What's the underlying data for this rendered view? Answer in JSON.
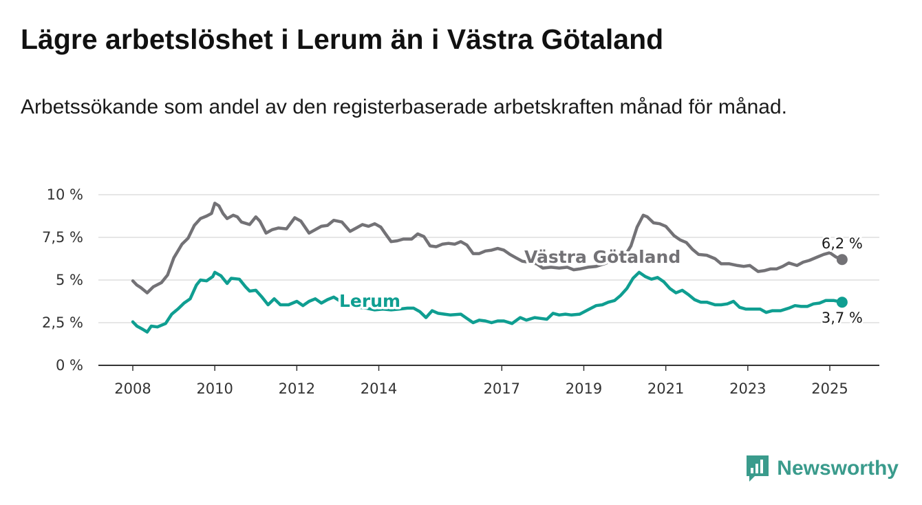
{
  "title": "Lägre arbetslöshet i Lerum än i Västra Götaland",
  "subtitle": "Arbetssökande som andel av den registerbaserade arbetskraften månad för månad.",
  "brand": {
    "name": "Newsworthy",
    "color": "#3a9b8c"
  },
  "chart_data": {
    "type": "line",
    "xlim": [
      2008,
      2025.5
    ],
    "ylim": [
      0,
      10
    ],
    "y_ticks": [
      0,
      2.5,
      5,
      7.5,
      10
    ],
    "y_tick_labels": [
      "0 %",
      "2,5 %",
      "5 %",
      "7,5 %",
      "10 %"
    ],
    "x_ticks": [
      2008,
      2010,
      2012,
      2014,
      2017,
      2019,
      2021,
      2023,
      2025
    ],
    "x_tick_labels": [
      "2008",
      "2010",
      "2012",
      "2014",
      "2017",
      "2019",
      "2021",
      "2023",
      "2025"
    ],
    "grid": true,
    "series": [
      {
        "name": "Västra Götaland",
        "color": "#737276",
        "end_label": "6,2 %",
        "points": [
          [
            2008.0,
            4.95
          ],
          [
            2008.1,
            4.7
          ],
          [
            2008.2,
            4.55
          ],
          [
            2008.35,
            4.25
          ],
          [
            2008.5,
            4.6
          ],
          [
            2008.7,
            4.85
          ],
          [
            2008.85,
            5.3
          ],
          [
            2009.0,
            6.3
          ],
          [
            2009.2,
            7.1
          ],
          [
            2009.35,
            7.45
          ],
          [
            2009.5,
            8.2
          ],
          [
            2009.65,
            8.6
          ],
          [
            2009.8,
            8.75
          ],
          [
            2009.92,
            8.9
          ],
          [
            2010.0,
            9.5
          ],
          [
            2010.1,
            9.35
          ],
          [
            2010.2,
            8.9
          ],
          [
            2010.3,
            8.6
          ],
          [
            2010.45,
            8.8
          ],
          [
            2010.55,
            8.7
          ],
          [
            2010.65,
            8.4
          ],
          [
            2010.85,
            8.25
          ],
          [
            2011.0,
            8.7
          ],
          [
            2011.1,
            8.45
          ],
          [
            2011.25,
            7.75
          ],
          [
            2011.4,
            7.95
          ],
          [
            2011.55,
            8.05
          ],
          [
            2011.75,
            8.0
          ],
          [
            2011.95,
            8.65
          ],
          [
            2012.1,
            8.45
          ],
          [
            2012.3,
            7.75
          ],
          [
            2012.45,
            7.95
          ],
          [
            2012.6,
            8.15
          ],
          [
            2012.75,
            8.2
          ],
          [
            2012.9,
            8.5
          ],
          [
            2013.1,
            8.4
          ],
          [
            2013.3,
            7.85
          ],
          [
            2013.45,
            8.05
          ],
          [
            2013.6,
            8.25
          ],
          [
            2013.75,
            8.15
          ],
          [
            2013.9,
            8.3
          ],
          [
            2014.05,
            8.1
          ],
          [
            2014.15,
            7.75
          ],
          [
            2014.3,
            7.25
          ],
          [
            2014.45,
            7.3
          ],
          [
            2014.6,
            7.4
          ],
          [
            2014.8,
            7.4
          ],
          [
            2014.95,
            7.7
          ],
          [
            2015.1,
            7.55
          ],
          [
            2015.25,
            7.0
          ],
          [
            2015.4,
            6.95
          ],
          [
            2015.55,
            7.1
          ],
          [
            2015.7,
            7.15
          ],
          [
            2015.85,
            7.1
          ],
          [
            2016.0,
            7.25
          ],
          [
            2016.15,
            7.05
          ],
          [
            2016.3,
            6.55
          ],
          [
            2016.45,
            6.55
          ],
          [
            2016.6,
            6.7
          ],
          [
            2016.75,
            6.75
          ],
          [
            2016.9,
            6.85
          ],
          [
            2017.05,
            6.75
          ],
          [
            2017.2,
            6.5
          ],
          [
            2017.35,
            6.3
          ],
          [
            2017.5,
            6.1
          ],
          [
            2017.65,
            6.05
          ],
          [
            2017.85,
            5.95
          ],
          [
            2018.0,
            5.7
          ],
          [
            2018.2,
            5.75
          ],
          [
            2018.4,
            5.7
          ],
          [
            2018.6,
            5.75
          ],
          [
            2018.75,
            5.6
          ],
          [
            2018.9,
            5.65
          ],
          [
            2019.1,
            5.75
          ],
          [
            2019.3,
            5.8
          ],
          [
            2019.5,
            5.95
          ],
          [
            2019.7,
            6.15
          ],
          [
            2019.9,
            6.4
          ],
          [
            2020.05,
            6.6
          ],
          [
            2020.15,
            7.0
          ],
          [
            2020.3,
            8.1
          ],
          [
            2020.45,
            8.8
          ],
          [
            2020.55,
            8.7
          ],
          [
            2020.7,
            8.35
          ],
          [
            2020.85,
            8.3
          ],
          [
            2021.0,
            8.15
          ],
          [
            2021.2,
            7.6
          ],
          [
            2021.35,
            7.35
          ],
          [
            2021.5,
            7.2
          ],
          [
            2021.65,
            6.8
          ],
          [
            2021.8,
            6.5
          ],
          [
            2022.0,
            6.45
          ],
          [
            2022.2,
            6.25
          ],
          [
            2022.35,
            5.95
          ],
          [
            2022.55,
            5.95
          ],
          [
            2022.75,
            5.85
          ],
          [
            2022.9,
            5.8
          ],
          [
            2023.05,
            5.85
          ],
          [
            2023.25,
            5.5
          ],
          [
            2023.4,
            5.55
          ],
          [
            2023.55,
            5.65
          ],
          [
            2023.7,
            5.65
          ],
          [
            2023.85,
            5.8
          ],
          [
            2024.0,
            6.0
          ],
          [
            2024.2,
            5.85
          ],
          [
            2024.35,
            6.05
          ],
          [
            2024.5,
            6.15
          ],
          [
            2024.7,
            6.35
          ],
          [
            2024.85,
            6.5
          ],
          [
            2025.0,
            6.6
          ],
          [
            2025.15,
            6.35
          ],
          [
            2025.3,
            6.2
          ]
        ]
      },
      {
        "name": "Lerum",
        "color": "#0f9e91",
        "end_label": "3,7 %",
        "points": [
          [
            2008.0,
            2.55
          ],
          [
            2008.1,
            2.3
          ],
          [
            2008.25,
            2.1
          ],
          [
            2008.35,
            1.95
          ],
          [
            2008.45,
            2.3
          ],
          [
            2008.6,
            2.25
          ],
          [
            2008.8,
            2.45
          ],
          [
            2008.95,
            3.0
          ],
          [
            2009.1,
            3.3
          ],
          [
            2009.25,
            3.65
          ],
          [
            2009.4,
            3.9
          ],
          [
            2009.55,
            4.7
          ],
          [
            2009.65,
            5.0
          ],
          [
            2009.8,
            4.95
          ],
          [
            2009.95,
            5.2
          ],
          [
            2010.0,
            5.45
          ],
          [
            2010.15,
            5.25
          ],
          [
            2010.3,
            4.8
          ],
          [
            2010.4,
            5.1
          ],
          [
            2010.6,
            5.05
          ],
          [
            2010.75,
            4.6
          ],
          [
            2010.85,
            4.35
          ],
          [
            2011.0,
            4.4
          ],
          [
            2011.15,
            4.0
          ],
          [
            2011.3,
            3.55
          ],
          [
            2011.45,
            3.9
          ],
          [
            2011.6,
            3.55
          ],
          [
            2011.8,
            3.55
          ],
          [
            2012.0,
            3.75
          ],
          [
            2012.15,
            3.5
          ],
          [
            2012.3,
            3.75
          ],
          [
            2012.45,
            3.9
          ],
          [
            2012.6,
            3.65
          ],
          [
            2012.75,
            3.85
          ],
          [
            2012.9,
            4.0
          ],
          [
            2013.1,
            3.7
          ],
          [
            2013.3,
            3.45
          ],
          [
            2013.5,
            3.4
          ],
          [
            2013.7,
            3.35
          ],
          [
            2013.9,
            3.25
          ],
          [
            2014.1,
            3.3
          ],
          [
            2014.3,
            3.25
          ],
          [
            2014.5,
            3.3
          ],
          [
            2014.7,
            3.35
          ],
          [
            2014.85,
            3.35
          ],
          [
            2015.0,
            3.15
          ],
          [
            2015.15,
            2.8
          ],
          [
            2015.3,
            3.2
          ],
          [
            2015.45,
            3.05
          ],
          [
            2015.6,
            3.0
          ],
          [
            2015.75,
            2.95
          ],
          [
            2016.0,
            3.0
          ],
          [
            2016.15,
            2.75
          ],
          [
            2016.3,
            2.5
          ],
          [
            2016.45,
            2.65
          ],
          [
            2016.6,
            2.6
          ],
          [
            2016.75,
            2.5
          ],
          [
            2016.9,
            2.6
          ],
          [
            2017.05,
            2.6
          ],
          [
            2017.25,
            2.45
          ],
          [
            2017.45,
            2.8
          ],
          [
            2017.6,
            2.65
          ],
          [
            2017.8,
            2.8
          ],
          [
            2017.95,
            2.75
          ],
          [
            2018.1,
            2.7
          ],
          [
            2018.25,
            3.05
          ],
          [
            2018.4,
            2.95
          ],
          [
            2018.55,
            3.0
          ],
          [
            2018.7,
            2.95
          ],
          [
            2018.9,
            3.0
          ],
          [
            2019.1,
            3.25
          ],
          [
            2019.3,
            3.5
          ],
          [
            2019.45,
            3.55
          ],
          [
            2019.6,
            3.7
          ],
          [
            2019.75,
            3.8
          ],
          [
            2019.9,
            4.1
          ],
          [
            2020.05,
            4.5
          ],
          [
            2020.2,
            5.1
          ],
          [
            2020.35,
            5.45
          ],
          [
            2020.5,
            5.2
          ],
          [
            2020.65,
            5.05
          ],
          [
            2020.8,
            5.15
          ],
          [
            2020.95,
            4.9
          ],
          [
            2021.1,
            4.5
          ],
          [
            2021.25,
            4.25
          ],
          [
            2021.4,
            4.4
          ],
          [
            2021.55,
            4.15
          ],
          [
            2021.7,
            3.85
          ],
          [
            2021.85,
            3.7
          ],
          [
            2022.0,
            3.7
          ],
          [
            2022.2,
            3.55
          ],
          [
            2022.35,
            3.55
          ],
          [
            2022.5,
            3.6
          ],
          [
            2022.65,
            3.75
          ],
          [
            2022.8,
            3.4
          ],
          [
            2022.95,
            3.3
          ],
          [
            2023.1,
            3.3
          ],
          [
            2023.3,
            3.3
          ],
          [
            2023.45,
            3.1
          ],
          [
            2023.6,
            3.2
          ],
          [
            2023.8,
            3.2
          ],
          [
            2024.0,
            3.35
          ],
          [
            2024.15,
            3.5
          ],
          [
            2024.3,
            3.45
          ],
          [
            2024.45,
            3.45
          ],
          [
            2024.6,
            3.6
          ],
          [
            2024.75,
            3.65
          ],
          [
            2024.9,
            3.8
          ],
          [
            2025.1,
            3.8
          ],
          [
            2025.3,
            3.7
          ]
        ]
      }
    ]
  }
}
